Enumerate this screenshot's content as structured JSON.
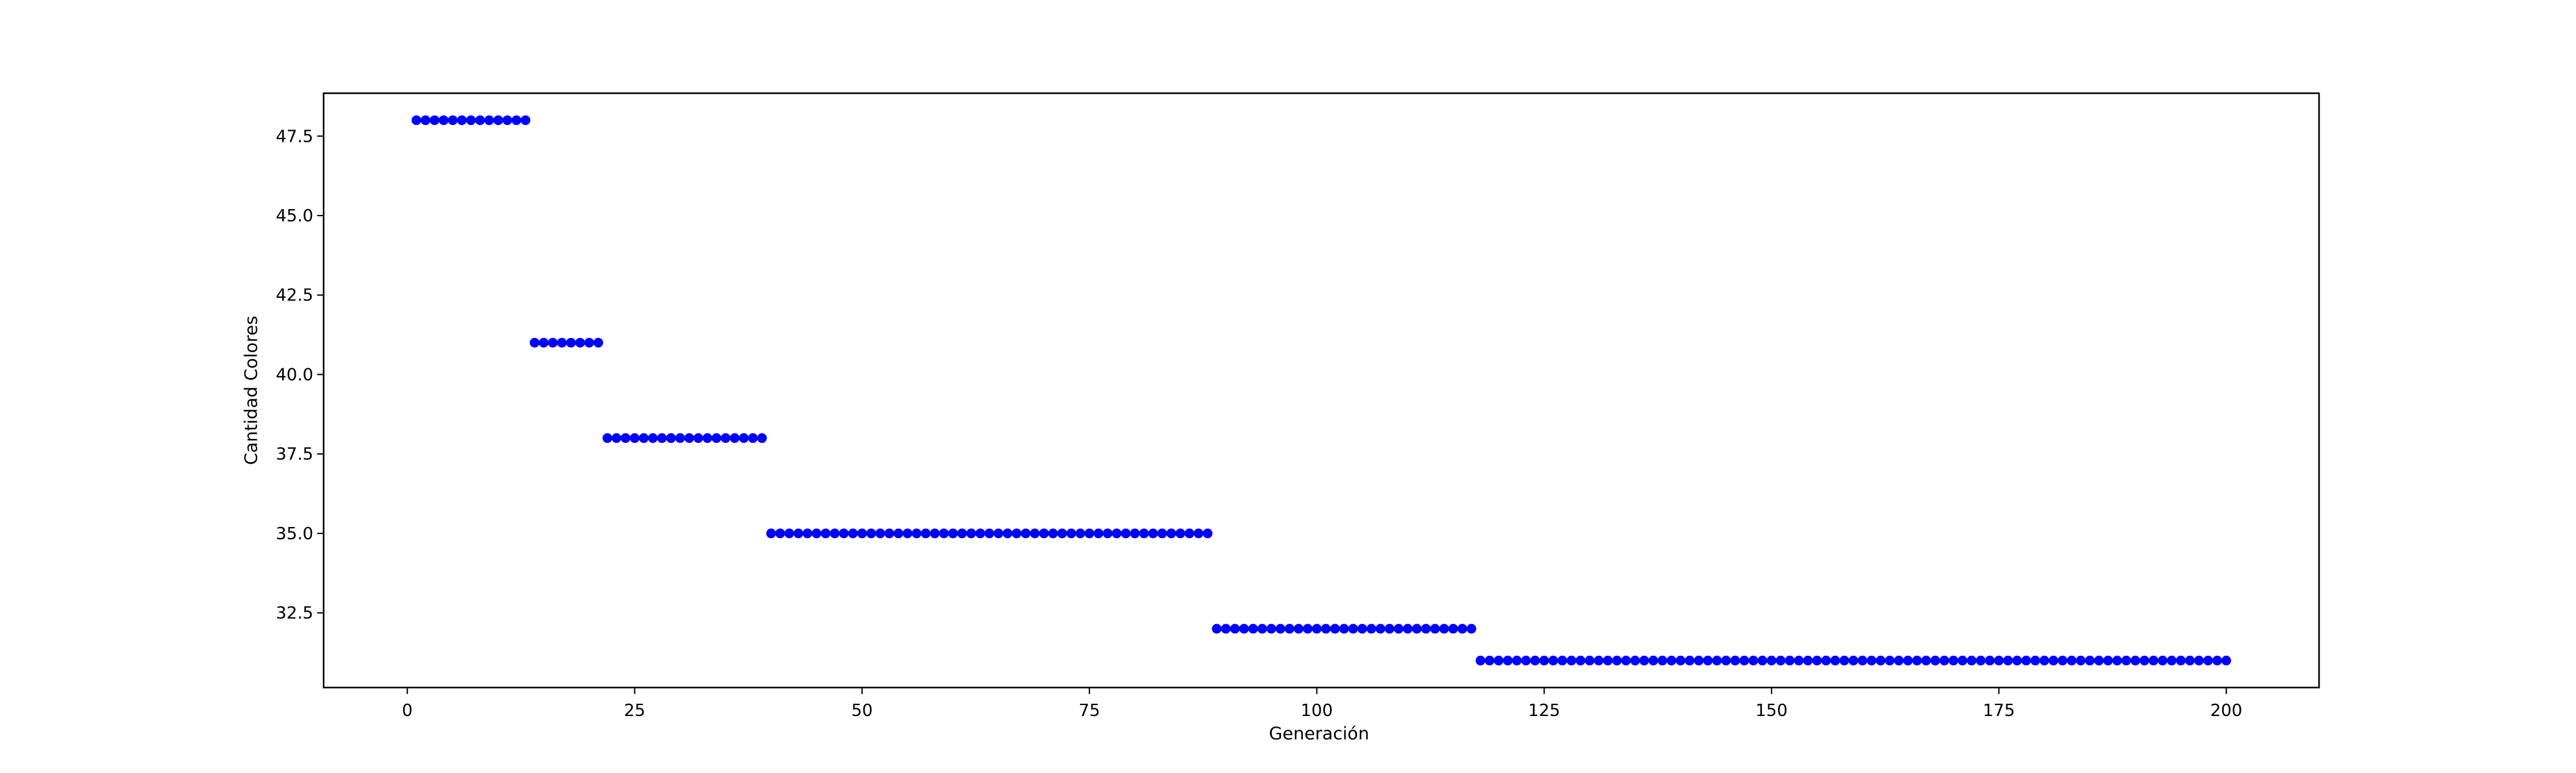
{
  "chart_data": {
    "type": "scatter",
    "title": "",
    "xlabel": "Generación",
    "ylabel": "Cantidad Colores",
    "xlim": [
      -9.2,
      210.2
    ],
    "ylim": [
      30.15,
      48.85
    ],
    "xticks": [
      0,
      25,
      50,
      75,
      100,
      125,
      150,
      175,
      200
    ],
    "xtick_labels": [
      "0",
      "25",
      "50",
      "75",
      "100",
      "125",
      "150",
      "175",
      "200"
    ],
    "yticks": [
      32.5,
      35.0,
      37.5,
      40.0,
      42.5,
      45.0,
      47.5
    ],
    "ytick_labels": [
      "32.5",
      "35.0",
      "37.5",
      "40.0",
      "42.5",
      "45.0",
      "47.5"
    ],
    "grid": false,
    "legend": "none",
    "marker_color": "#0000ff",
    "segments": [
      {
        "x_start": 1,
        "x_end": 13,
        "y": 48
      },
      {
        "x_start": 14,
        "x_end": 21,
        "y": 41
      },
      {
        "x_start": 22,
        "x_end": 39,
        "y": 38
      },
      {
        "x_start": 40,
        "x_end": 88,
        "y": 35
      },
      {
        "x_start": 89,
        "x_end": 117,
        "y": 32
      },
      {
        "x_start": 118,
        "x_end": 200,
        "y": 31
      }
    ]
  }
}
